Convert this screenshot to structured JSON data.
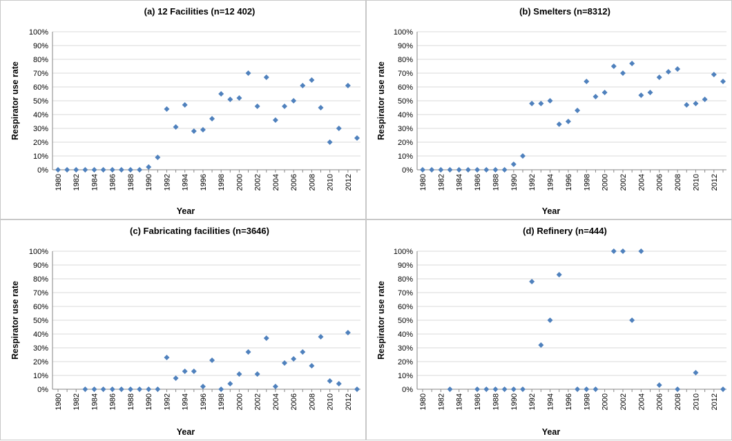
{
  "chart_data": [
    {
      "type": "scatter",
      "title": "(a) 12 Facilities (n=12 402)",
      "xlabel": "Year",
      "ylabel": "Respirator use rate",
      "xlim": [
        1980,
        2013
      ],
      "ylim": [
        0,
        100
      ],
      "yticks": [
        "0%",
        "10%",
        "20%",
        "30%",
        "40%",
        "50%",
        "60%",
        "70%",
        "80%",
        "90%",
        "100%"
      ],
      "xticks": [
        "1980",
        "1982",
        "1984",
        "1986",
        "1988",
        "1990",
        "1992",
        "1994",
        "1996",
        "1998",
        "2000",
        "2002",
        "2004",
        "2006",
        "2008",
        "2010",
        "2012"
      ],
      "x": [
        1980,
        1981,
        1982,
        1983,
        1984,
        1985,
        1986,
        1987,
        1988,
        1989,
        1990,
        1991,
        1992,
        1993,
        1994,
        1995,
        1996,
        1997,
        1998,
        1999,
        2000,
        2001,
        2002,
        2003,
        2004,
        2005,
        2006,
        2007,
        2008,
        2009,
        2010,
        2011,
        2012,
        2013
      ],
      "y": [
        0,
        0,
        0,
        0,
        0,
        0,
        0,
        0,
        0,
        0,
        2,
        9,
        44,
        31,
        47,
        28,
        29,
        37,
        55,
        51,
        52,
        70,
        46,
        67,
        36,
        46,
        50,
        61,
        65,
        45,
        20,
        30,
        61,
        23
      ]
    },
    {
      "type": "scatter",
      "title": "(b) Smelters (n=8312)",
      "xlabel": "Year",
      "ylabel": "Respirator use rate",
      "xlim": [
        1980,
        2013
      ],
      "ylim": [
        0,
        100
      ],
      "yticks": [
        "0%",
        "10%",
        "20%",
        "30%",
        "40%",
        "50%",
        "60%",
        "70%",
        "80%",
        "90%",
        "100%"
      ],
      "xticks": [
        "1980",
        "1982",
        "1984",
        "1986",
        "1988",
        "1990",
        "1992",
        "1994",
        "1996",
        "1998",
        "2000",
        "2002",
        "2004",
        "2006",
        "2008",
        "2010",
        "2012"
      ],
      "x": [
        1980,
        1981,
        1982,
        1983,
        1984,
        1985,
        1986,
        1987,
        1988,
        1989,
        1990,
        1991,
        1992,
        1993,
        1994,
        1995,
        1996,
        1997,
        1998,
        1999,
        2000,
        2001,
        2002,
        2003,
        2004,
        2005,
        2006,
        2007,
        2008,
        2009,
        2010,
        2011,
        2012,
        2013
      ],
      "y": [
        0,
        0,
        0,
        0,
        0,
        0,
        0,
        0,
        0,
        0,
        4,
        10,
        48,
        48,
        50,
        33,
        35,
        43,
        64,
        53,
        56,
        75,
        70,
        77,
        54,
        56,
        67,
        71,
        73,
        47,
        48,
        51,
        69,
        64
      ]
    },
    {
      "type": "scatter",
      "title": "(c) Fabricating facilities (n=3646)",
      "xlabel": "Year",
      "ylabel": "Respirator use rate",
      "xlim": [
        1980,
        2013
      ],
      "ylim": [
        0,
        100
      ],
      "yticks": [
        "0%",
        "10%",
        "20%",
        "30%",
        "40%",
        "50%",
        "60%",
        "70%",
        "80%",
        "90%",
        "100%"
      ],
      "xticks": [
        "1980",
        "1982",
        "1984",
        "1986",
        "1988",
        "1990",
        "1992",
        "1994",
        "1996",
        "1998",
        "2000",
        "2002",
        "2004",
        "2006",
        "2008",
        "2010",
        "2012"
      ],
      "x": [
        1983,
        1984,
        1985,
        1986,
        1987,
        1988,
        1989,
        1990,
        1991,
        1992,
        1993,
        1994,
        1995,
        1996,
        1997,
        1998,
        1999,
        2000,
        2001,
        2002,
        2003,
        2004,
        2005,
        2006,
        2007,
        2008,
        2009,
        2010,
        2011,
        2012,
        2013
      ],
      "y": [
        0,
        0,
        0,
        0,
        0,
        0,
        0,
        0,
        0,
        23,
        8,
        13,
        13,
        2,
        21,
        0,
        4,
        11,
        27,
        11,
        37,
        2,
        19,
        22,
        27,
        17,
        38,
        6,
        4,
        41,
        0
      ]
    },
    {
      "type": "scatter",
      "title": "(d) Refinery (n=444)",
      "xlabel": "Year",
      "ylabel": "Respirator use rate",
      "xlim": [
        1980,
        2013
      ],
      "ylim": [
        0,
        100
      ],
      "yticks": [
        "0%",
        "10%",
        "20%",
        "30%",
        "40%",
        "50%",
        "60%",
        "70%",
        "80%",
        "90%",
        "100%"
      ],
      "xticks": [
        "1980",
        "1982",
        "1984",
        "1986",
        "1988",
        "1990",
        "1992",
        "1994",
        "1996",
        "1998",
        "2000",
        "2002",
        "2004",
        "2006",
        "2008",
        "2010",
        "2012"
      ],
      "x": [
        1983,
        1986,
        1987,
        1988,
        1989,
        1990,
        1991,
        1992,
        1993,
        1994,
        1995,
        1997,
        1998,
        1999,
        2001,
        2002,
        2003,
        2004,
        2006,
        2008,
        2010,
        2013
      ],
      "y": [
        0,
        0,
        0,
        0,
        0,
        0,
        0,
        78,
        32,
        50,
        83,
        0,
        0,
        0,
        100,
        100,
        50,
        100,
        3,
        0,
        12,
        0
      ]
    }
  ]
}
